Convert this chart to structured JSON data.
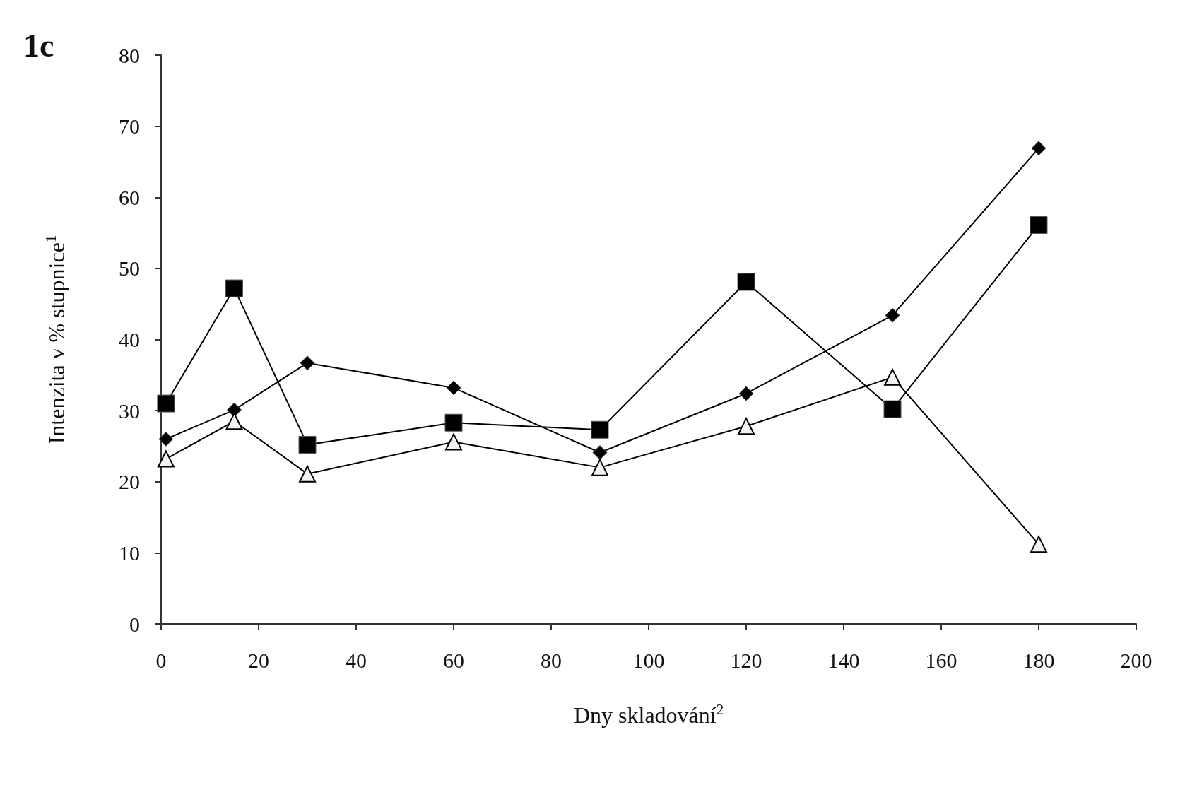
{
  "chart_data": {
    "type": "line",
    "title": "1c",
    "xlabel": "Dny skladování$^{2}$",
    "ylabel": "Intenzita v % stupnice$^{1}$",
    "x": [
      1,
      15,
      30,
      60,
      90,
      120,
      150,
      180
    ],
    "series": [
      {
        "color": "#000000",
        "marker": "diamond",
        "values": [
          26,
          30.1,
          36.7,
          33.2,
          24.1,
          32.4,
          43.4,
          66.9
        ]
      },
      {
        "color": "#000000",
        "marker": "square",
        "values": [
          31,
          47.2,
          25.2,
          28.3,
          27.3,
          48.1,
          30.2,
          56.1
        ]
      },
      {
        "color": "#000000",
        "marker": "triangle",
        "values": [
          23.2,
          28.5,
          21.1,
          25.6,
          22,
          27.8,
          34.7,
          11.2
        ]
      }
    ],
    "xlim": [
      0,
      200
    ],
    "xticks": [
      0,
      20,
      40,
      60,
      80,
      100,
      120,
      140,
      160,
      180,
      200
    ],
    "ylim": [
      0,
      80
    ],
    "yticks": [
      0,
      10,
      20,
      30,
      40,
      50,
      60,
      70,
      80
    ],
    "grid": false,
    "line_style": "solid"
  }
}
